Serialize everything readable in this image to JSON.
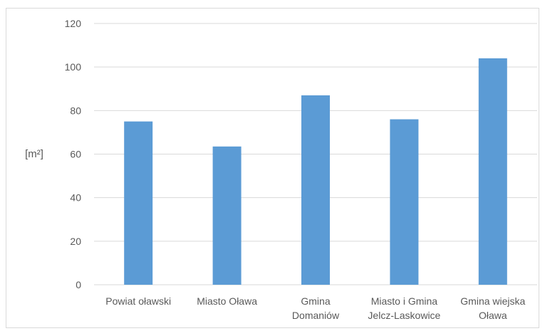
{
  "chart_data": {
    "type": "bar",
    "title": "",
    "xlabel": "",
    "ylabel": "[m²]",
    "ylim": [
      0,
      120
    ],
    "yticks": [
      0,
      20,
      40,
      60,
      80,
      100,
      120
    ],
    "grid": true,
    "legend": "none",
    "bar_color": "#5b9bd5",
    "categories": [
      [
        "Powiat oławski"
      ],
      [
        "Miasto Oława"
      ],
      [
        "Gmina",
        "Domaniów"
      ],
      [
        "Miasto i Gmina",
        "Jelcz-Laskowice"
      ],
      [
        "Gmina wiejska",
        "Oława"
      ]
    ],
    "values": [
      75,
      63.5,
      87,
      76,
      104
    ]
  }
}
